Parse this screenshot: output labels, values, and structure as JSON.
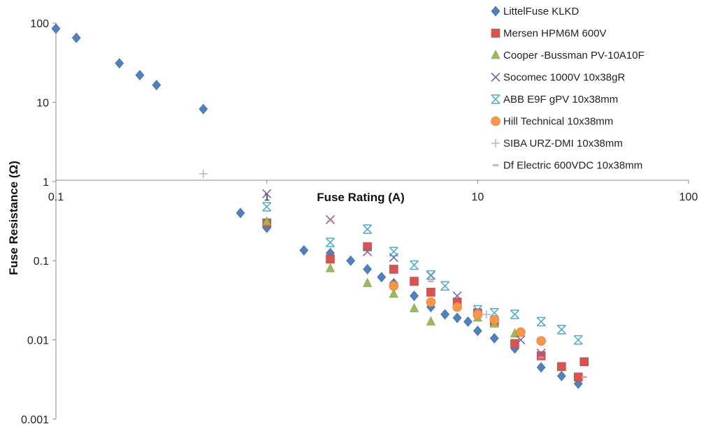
{
  "chart_data": {
    "type": "scatter",
    "xlabel": "Fuse Rating (A)",
    "ylabel": "Fuse Resistance (Ω)",
    "x_scale": "log",
    "y_scale": "log",
    "xlim": [
      0.1,
      100
    ],
    "ylim": [
      0.001,
      100
    ],
    "x_ticks": [
      "0.1",
      "1",
      "10",
      "100"
    ],
    "y_ticks": [
      "0.001",
      "0.01",
      "0.1",
      "1",
      "10",
      "100"
    ],
    "grid": false,
    "legend_position": "top-right",
    "series": [
      {
        "name": "LittelFuse KLKD",
        "marker": "diamond",
        "color": "#4f81bd",
        "points": [
          [
            0.1,
            85
          ],
          [
            0.125,
            65
          ],
          [
            0.2,
            31
          ],
          [
            0.25,
            22
          ],
          [
            0.3,
            16.5
          ],
          [
            0.5,
            8.2
          ],
          [
            0.75,
            0.4
          ],
          [
            1,
            0.26
          ],
          [
            1.5,
            0.135
          ],
          [
            2,
            0.125
          ],
          [
            2.5,
            0.1
          ],
          [
            3,
            0.078
          ],
          [
            3.5,
            0.062
          ],
          [
            4,
            0.052
          ],
          [
            5,
            0.036
          ],
          [
            6,
            0.026
          ],
          [
            7,
            0.021
          ],
          [
            8,
            0.019
          ],
          [
            9,
            0.017
          ],
          [
            10,
            0.013
          ],
          [
            12,
            0.0105
          ],
          [
            15,
            0.0078
          ],
          [
            20,
            0.0045
          ],
          [
            25,
            0.0035
          ],
          [
            30,
            0.0028
          ]
        ]
      },
      {
        "name": "Mersen HPM6M 600V",
        "marker": "square",
        "color": "#d9534f",
        "points": [
          [
            1,
            0.3
          ],
          [
            2,
            0.105
          ],
          [
            3,
            0.15
          ],
          [
            4,
            0.078
          ],
          [
            5,
            0.055
          ],
          [
            6,
            0.04
          ],
          [
            8,
            0.03
          ],
          [
            10,
            0.022
          ],
          [
            12,
            0.017
          ],
          [
            15,
            0.009
          ],
          [
            20,
            0.0063
          ],
          [
            25,
            0.0046
          ],
          [
            30,
            0.0034
          ],
          [
            32,
            0.0053
          ]
        ]
      },
      {
        "name": "Cooper -Bussman PV-10A10F",
        "marker": "triangle",
        "color": "#9bbb59",
        "points": [
          [
            1,
            0.31
          ],
          [
            2,
            0.08
          ],
          [
            3,
            0.052
          ],
          [
            4,
            0.038
          ],
          [
            5,
            0.025
          ],
          [
            6,
            0.017
          ],
          [
            10,
            0.019
          ],
          [
            12,
            0.016
          ],
          [
            15,
            0.012
          ]
        ]
      },
      {
        "name": "Socomec 1000V 10x38gR",
        "marker": "x",
        "color": "#8064a2",
        "points": [
          [
            1,
            0.7
          ],
          [
            2,
            0.33
          ],
          [
            3,
            0.13
          ],
          [
            4,
            0.11
          ],
          [
            6,
            0.065
          ],
          [
            8,
            0.036
          ],
          [
            16,
            0.01
          ],
          [
            20,
            0.0068
          ]
        ]
      },
      {
        "name": "ABB E9F gPV 10x38mm",
        "marker": "star",
        "color": "#4bacc6",
        "points": [
          [
            1,
            0.48
          ],
          [
            2,
            0.17
          ],
          [
            3,
            0.25
          ],
          [
            4,
            0.13
          ],
          [
            5,
            0.088
          ],
          [
            6,
            0.066
          ],
          [
            7,
            0.048
          ],
          [
            10,
            0.024
          ],
          [
            12,
            0.022
          ],
          [
            15,
            0.021
          ],
          [
            20,
            0.017
          ],
          [
            25,
            0.0135
          ],
          [
            30,
            0.01
          ]
        ]
      },
      {
        "name": "Hill Technical 10x38mm",
        "marker": "circle",
        "color": "#f79646",
        "points": [
          [
            4,
            0.048
          ],
          [
            6,
            0.03
          ],
          [
            8,
            0.026
          ],
          [
            10,
            0.021
          ],
          [
            12,
            0.018
          ],
          [
            16,
            0.0125
          ],
          [
            20,
            0.0097
          ]
        ]
      },
      {
        "name": "SIBA URZ-DMI 10x38mm",
        "marker": "plus",
        "color": "#aab4e0",
        "points": [
          [
            0.5,
            1.25
          ],
          [
            11,
            0.021
          ]
        ]
      },
      {
        "name": "Df Electric 600VDC 10x38mm",
        "marker": "dash",
        "color": "#f08a8a",
        "points": [
          [
            2,
            0.32
          ],
          [
            6,
            0.055
          ],
          [
            10,
            0.023
          ],
          [
            20,
            0.006
          ],
          [
            32,
            0.0034
          ]
        ]
      }
    ]
  }
}
